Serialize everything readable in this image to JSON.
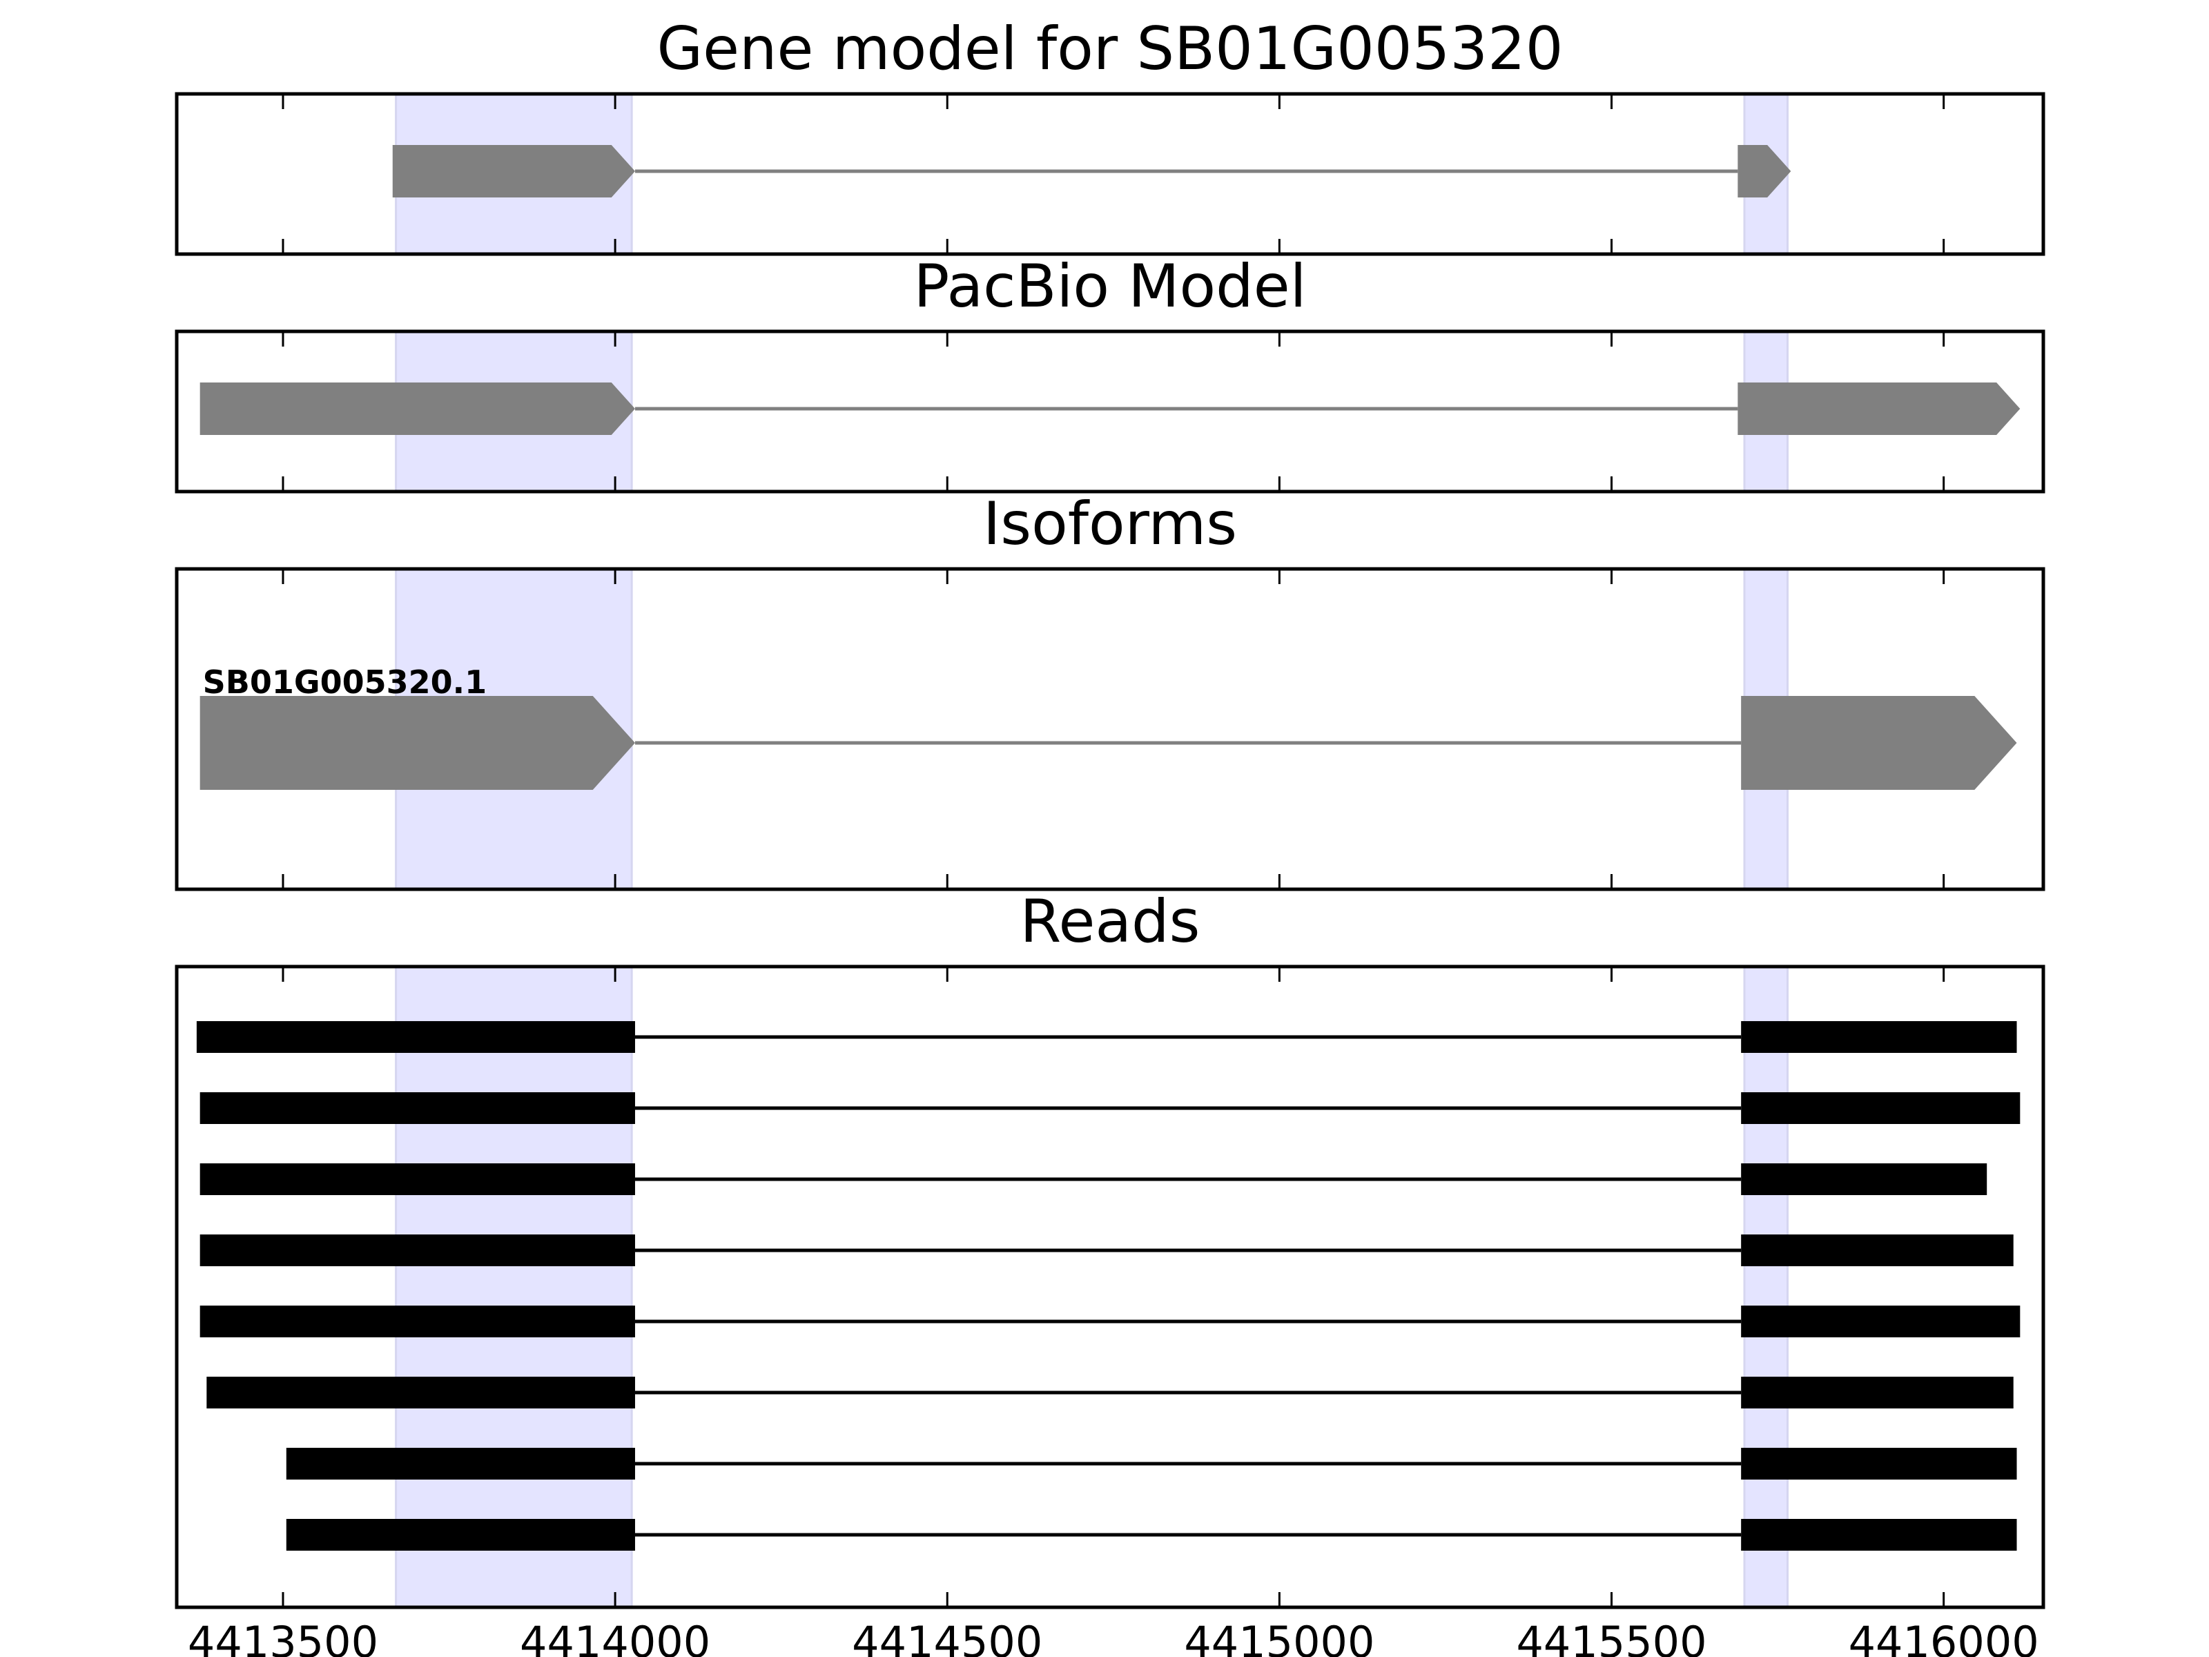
{
  "chart_data": {
    "type": "gene-structure",
    "xlim": [
      4413340,
      4416150
    ],
    "x_ticks": [
      4413500,
      4414000,
      4414500,
      4415000,
      4415500,
      4416000
    ],
    "x_tick_labels": [
      "4413500",
      "4414000",
      "4414500",
      "4415000",
      "4415500",
      "4416000"
    ],
    "highlight_regions": [
      [
        4413670,
        4414025
      ],
      [
        4415700,
        4415765
      ]
    ],
    "colors": {
      "highlight": "#e4e4ff",
      "feature": "#808080",
      "intron": "#808080",
      "read": "#000000",
      "axes": "#000000"
    },
    "panels": [
      {
        "title": "Gene model for SB01G005320",
        "kind": "gene-model",
        "exons": [
          [
            4413665,
            4414030
          ],
          [
            4415690,
            4415770
          ]
        ],
        "strand": "+"
      },
      {
        "title": "PacBio Model",
        "kind": "gene-model",
        "exons": [
          [
            4413375,
            4414030
          ],
          [
            4415690,
            4416115
          ]
        ],
        "strand": "+"
      },
      {
        "title": "Isoforms",
        "kind": "isoforms",
        "isoforms": [
          {
            "label": "SB01G005320.1",
            "exons": [
              [
                4413375,
                4414030
              ],
              [
                4415695,
                4416110
              ]
            ]
          }
        ]
      },
      {
        "title": "Reads",
        "kind": "reads",
        "reads": [
          {
            "exons": [
              [
                4413370,
                4414030
              ],
              [
                4415695,
                4416110
              ]
            ]
          },
          {
            "exons": [
              [
                4413375,
                4414030
              ],
              [
                4415695,
                4416115
              ]
            ]
          },
          {
            "exons": [
              [
                4413375,
                4414030
              ],
              [
                4415695,
                4416065
              ]
            ]
          },
          {
            "exons": [
              [
                4413375,
                4414030
              ],
              [
                4415695,
                4416105
              ]
            ]
          },
          {
            "exons": [
              [
                4413375,
                4414030
              ],
              [
                4415695,
                4416115
              ]
            ]
          },
          {
            "exons": [
              [
                4413385,
                4414030
              ],
              [
                4415695,
                4416105
              ]
            ]
          },
          {
            "exons": [
              [
                4413505,
                4414030
              ],
              [
                4415695,
                4416110
              ]
            ]
          },
          {
            "exons": [
              [
                4413505,
                4414030
              ],
              [
                4415695,
                4416110
              ]
            ]
          }
        ]
      }
    ]
  }
}
